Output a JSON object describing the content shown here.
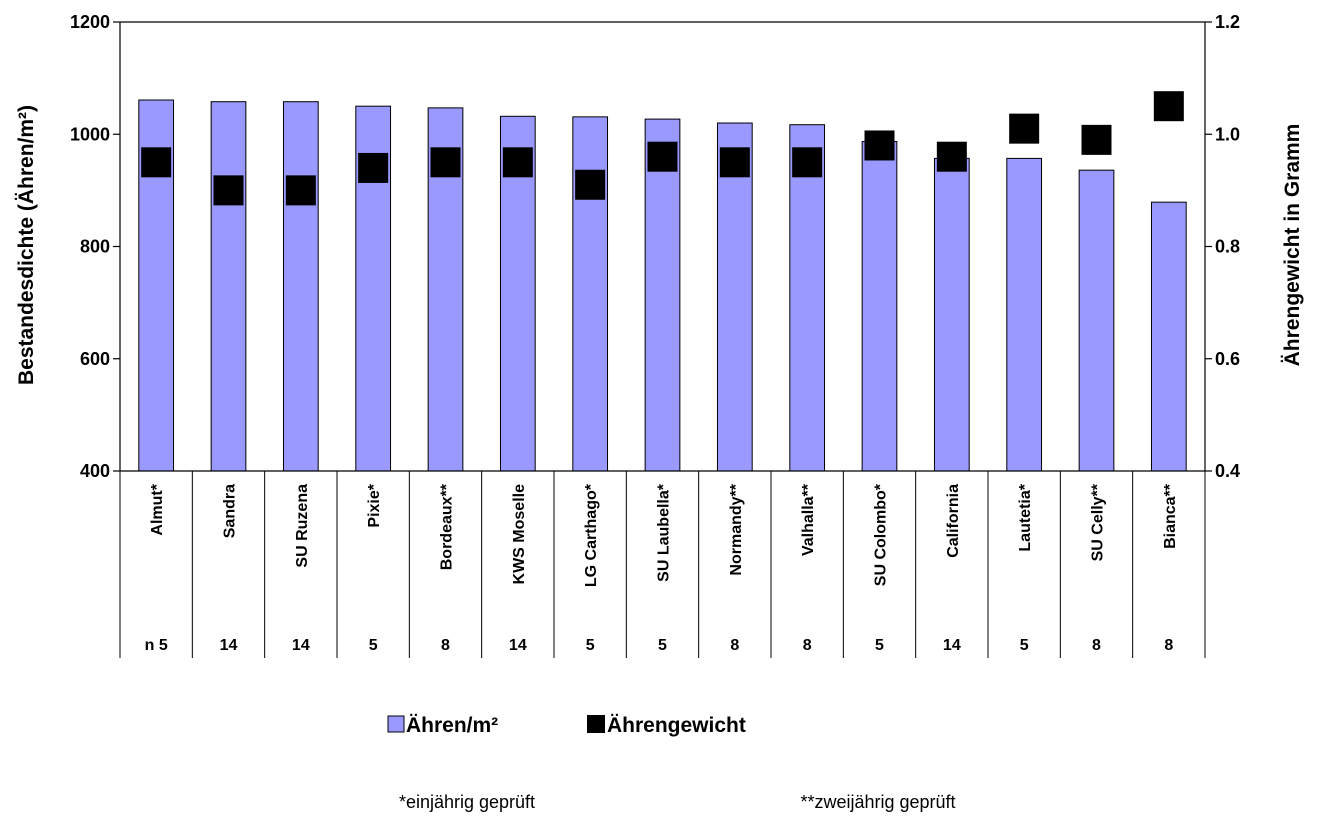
{
  "chart_data": {
    "type": "bar",
    "categories": [
      "Almut*",
      "Sandra",
      "SU Ruzena",
      "Pixie*",
      "Bordeaux**",
      "KWS Moselle",
      "LG Carthago*",
      "SU Laubella*",
      "Normandy**",
      "Valhalla**",
      "SU Colombo*",
      "California",
      "Lautetia*",
      "SU Celly**",
      "Bianca**"
    ],
    "n_label": "n",
    "n_values": [
      "5",
      "14",
      "14",
      "5",
      "8",
      "14",
      "5",
      "5",
      "8",
      "8",
      "5",
      "14",
      "5",
      "8",
      "8"
    ],
    "series": [
      {
        "name": "Ähren/m²",
        "type": "bar",
        "axis": "left",
        "color": "#9999ff",
        "values": [
          1061,
          1058,
          1058,
          1050,
          1047,
          1032,
          1031,
          1027,
          1020,
          1017,
          987,
          957,
          957,
          936,
          879
        ]
      },
      {
        "name": "Ährengewicht",
        "type": "marker",
        "axis": "right",
        "color": "#000000",
        "values": [
          0.95,
          0.9,
          0.9,
          0.94,
          0.95,
          0.95,
          0.91,
          0.96,
          0.95,
          0.95,
          0.98,
          0.96,
          1.01,
          0.99,
          1.05
        ]
      }
    ],
    "ylabel": "Bestandesdichte (Ähren/m²)",
    "y2label": "Ährengewicht in Gramm",
    "ylim": [
      400,
      1200
    ],
    "y2lim": [
      0.4,
      1.2
    ],
    "yticks": [
      "400",
      "600",
      "800",
      "1000",
      "1200"
    ],
    "y2ticks": [
      "0.4",
      "0.6",
      "0.8",
      "1.0",
      "1.2"
    ],
    "legend_position": "bottom"
  },
  "footnotes": {
    "single_year": "*einjährig geprüft",
    "two_year": "**zweijährig geprüft"
  }
}
